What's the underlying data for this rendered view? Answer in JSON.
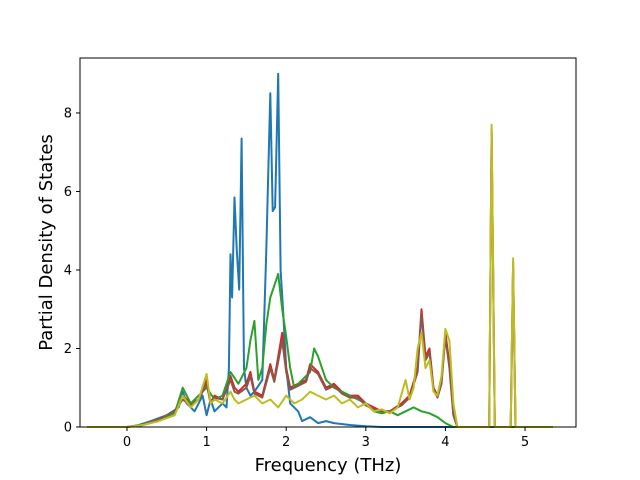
{
  "chart_data": {
    "type": "line",
    "title": "",
    "xlabel": "Frequency (THz)",
    "ylabel": "Partial Density of States",
    "xlim": [
      -0.59,
      5.64
    ],
    "ylim": [
      0,
      9.4
    ],
    "xticks": [
      0,
      1,
      2,
      3,
      4,
      5
    ],
    "yticks": [
      0,
      2,
      4,
      6,
      8
    ],
    "grid": false,
    "legend": "none",
    "series": [
      {
        "color": "#1f77b4",
        "points": [
          [
            -0.5,
            0
          ],
          [
            0,
            0
          ],
          [
            0.15,
            0.05
          ],
          [
            0.3,
            0.15
          ],
          [
            0.5,
            0.3
          ],
          [
            0.65,
            0.5
          ],
          [
            0.7,
            0.9
          ],
          [
            0.75,
            0.6
          ],
          [
            0.85,
            0.4
          ],
          [
            0.95,
            0.8
          ],
          [
            1.0,
            0.3
          ],
          [
            1.05,
            0.7
          ],
          [
            1.1,
            0.4
          ],
          [
            1.2,
            0.6
          ],
          [
            1.25,
            0.5
          ],
          [
            1.28,
            1.5
          ],
          [
            1.3,
            4.4
          ],
          [
            1.32,
            3.3
          ],
          [
            1.35,
            5.85
          ],
          [
            1.38,
            4.5
          ],
          [
            1.41,
            3.5
          ],
          [
            1.44,
            7.35
          ],
          [
            1.47,
            1.5
          ],
          [
            1.5,
            1.0
          ],
          [
            1.55,
            0.8
          ],
          [
            1.6,
            0.9
          ],
          [
            1.7,
            1.2
          ],
          [
            1.75,
            4.5
          ],
          [
            1.8,
            8.5
          ],
          [
            1.83,
            5.5
          ],
          [
            1.86,
            5.6
          ],
          [
            1.9,
            9.0
          ],
          [
            1.93,
            4.0
          ],
          [
            1.96,
            3.0
          ],
          [
            2.0,
            1.5
          ],
          [
            2.05,
            0.6
          ],
          [
            2.1,
            0.5
          ],
          [
            2.15,
            0.4
          ],
          [
            2.2,
            0.15
          ],
          [
            2.3,
            0.25
          ],
          [
            2.4,
            0.1
          ],
          [
            2.5,
            0.15
          ],
          [
            2.6,
            0.1
          ],
          [
            2.8,
            0.05
          ],
          [
            3.0,
            0.02
          ],
          [
            3.2,
            0
          ],
          [
            5.35,
            0
          ]
        ]
      },
      {
        "color": "#d62728",
        "points": [
          [
            -0.5,
            0
          ],
          [
            0,
            0
          ],
          [
            0.2,
            0.05
          ],
          [
            0.4,
            0.2
          ],
          [
            0.6,
            0.4
          ],
          [
            0.7,
            0.8
          ],
          [
            0.8,
            0.6
          ],
          [
            0.9,
            0.7
          ],
          [
            1.0,
            1.2
          ],
          [
            1.05,
            0.6
          ],
          [
            1.1,
            0.8
          ],
          [
            1.2,
            0.7
          ],
          [
            1.3,
            1.3
          ],
          [
            1.35,
            1.0
          ],
          [
            1.4,
            0.9
          ],
          [
            1.5,
            1.1
          ],
          [
            1.55,
            1.4
          ],
          [
            1.6,
            0.9
          ],
          [
            1.7,
            0.8
          ],
          [
            1.8,
            1.6
          ],
          [
            1.85,
            1.2
          ],
          [
            1.95,
            2.4
          ],
          [
            2.0,
            1.5
          ],
          [
            2.05,
            1.0
          ],
          [
            2.15,
            1.1
          ],
          [
            2.25,
            1.2
          ],
          [
            2.3,
            1.6
          ],
          [
            2.4,
            1.4
          ],
          [
            2.5,
            1.0
          ],
          [
            2.6,
            1.1
          ],
          [
            2.7,
            0.9
          ],
          [
            2.8,
            0.8
          ],
          [
            2.9,
            0.8
          ],
          [
            3.0,
            0.6
          ],
          [
            3.1,
            0.5
          ],
          [
            3.2,
            0.4
          ],
          [
            3.3,
            0.4
          ],
          [
            3.45,
            0.6
          ],
          [
            3.55,
            0.8
          ],
          [
            3.65,
            1.5
          ],
          [
            3.7,
            3.0
          ],
          [
            3.75,
            1.8
          ],
          [
            3.8,
            2.0
          ],
          [
            3.85,
            1.0
          ],
          [
            3.9,
            0.8
          ],
          [
            3.95,
            1.2
          ],
          [
            4.0,
            2.4
          ],
          [
            4.05,
            1.6
          ],
          [
            4.1,
            0.3
          ],
          [
            4.15,
            0
          ],
          [
            4.55,
            0
          ],
          [
            4.58,
            7.6
          ],
          [
            4.62,
            0
          ],
          [
            4.82,
            0
          ],
          [
            4.85,
            4.2
          ],
          [
            4.88,
            0
          ],
          [
            5.35,
            0
          ]
        ]
      },
      {
        "color": "#2ca02c",
        "points": [
          [
            -0.5,
            0
          ],
          [
            0,
            0
          ],
          [
            0.2,
            0.05
          ],
          [
            0.4,
            0.2
          ],
          [
            0.6,
            0.35
          ],
          [
            0.7,
            1.0
          ],
          [
            0.8,
            0.6
          ],
          [
            0.9,
            0.8
          ],
          [
            1.0,
            1.0
          ],
          [
            1.1,
            0.7
          ],
          [
            1.2,
            0.8
          ],
          [
            1.3,
            1.4
          ],
          [
            1.4,
            1.1
          ],
          [
            1.5,
            1.5
          ],
          [
            1.55,
            2.2
          ],
          [
            1.6,
            2.7
          ],
          [
            1.65,
            1.2
          ],
          [
            1.7,
            1.5
          ],
          [
            1.75,
            2.6
          ],
          [
            1.8,
            3.3
          ],
          [
            1.85,
            3.6
          ],
          [
            1.9,
            3.9
          ],
          [
            1.95,
            3.0
          ],
          [
            2.0,
            2.3
          ],
          [
            2.05,
            1.5
          ],
          [
            2.1,
            1.0
          ],
          [
            2.2,
            1.2
          ],
          [
            2.3,
            1.4
          ],
          [
            2.35,
            2.0
          ],
          [
            2.4,
            1.8
          ],
          [
            2.5,
            1.2
          ],
          [
            2.6,
            1.0
          ],
          [
            2.7,
            0.9
          ],
          [
            2.8,
            0.8
          ],
          [
            2.9,
            0.7
          ],
          [
            3.0,
            0.6
          ],
          [
            3.1,
            0.4
          ],
          [
            3.2,
            0.35
          ],
          [
            3.3,
            0.4
          ],
          [
            3.4,
            0.3
          ],
          [
            3.5,
            0.4
          ],
          [
            3.6,
            0.5
          ],
          [
            3.7,
            0.4
          ],
          [
            3.8,
            0.35
          ],
          [
            3.9,
            0.25
          ],
          [
            4.0,
            0.1
          ],
          [
            4.1,
            0
          ],
          [
            5.35,
            0
          ]
        ]
      },
      {
        "color": "#8c564b",
        "points": [
          [
            -0.5,
            0
          ],
          [
            0,
            0
          ],
          [
            0.2,
            0.05
          ],
          [
            0.4,
            0.2
          ],
          [
            0.6,
            0.4
          ],
          [
            0.7,
            0.7
          ],
          [
            0.8,
            0.55
          ],
          [
            0.9,
            0.7
          ],
          [
            1.0,
            1.1
          ],
          [
            1.05,
            0.6
          ],
          [
            1.1,
            0.75
          ],
          [
            1.2,
            0.7
          ],
          [
            1.3,
            1.2
          ],
          [
            1.35,
            0.9
          ],
          [
            1.4,
            0.85
          ],
          [
            1.5,
            1.0
          ],
          [
            1.55,
            1.3
          ],
          [
            1.6,
            0.85
          ],
          [
            1.7,
            0.75
          ],
          [
            1.8,
            1.5
          ],
          [
            1.85,
            1.15
          ],
          [
            1.95,
            2.2
          ],
          [
            2.0,
            1.4
          ],
          [
            2.05,
            0.95
          ],
          [
            2.15,
            1.05
          ],
          [
            2.25,
            1.15
          ],
          [
            2.3,
            1.5
          ],
          [
            2.4,
            1.35
          ],
          [
            2.5,
            0.95
          ],
          [
            2.6,
            1.05
          ],
          [
            2.7,
            0.85
          ],
          [
            2.8,
            0.75
          ],
          [
            2.9,
            0.75
          ],
          [
            3.0,
            0.55
          ],
          [
            3.1,
            0.45
          ],
          [
            3.2,
            0.4
          ],
          [
            3.3,
            0.4
          ],
          [
            3.45,
            0.55
          ],
          [
            3.55,
            0.75
          ],
          [
            3.65,
            1.4
          ],
          [
            3.7,
            2.9
          ],
          [
            3.75,
            1.7
          ],
          [
            3.8,
            1.9
          ],
          [
            3.85,
            0.95
          ],
          [
            3.9,
            0.75
          ],
          [
            3.95,
            1.1
          ],
          [
            4.0,
            2.3
          ],
          [
            4.05,
            1.5
          ],
          [
            4.1,
            0.3
          ],
          [
            4.15,
            0
          ],
          [
            4.55,
            0
          ],
          [
            4.58,
            7.5
          ],
          [
            4.62,
            0
          ],
          [
            4.82,
            0
          ],
          [
            4.85,
            4.1
          ],
          [
            4.88,
            0
          ],
          [
            5.35,
            0
          ]
        ]
      },
      {
        "color": "#bcbd22",
        "points": [
          [
            -0.5,
            0
          ],
          [
            0,
            0
          ],
          [
            0.2,
            0.05
          ],
          [
            0.4,
            0.15
          ],
          [
            0.6,
            0.3
          ],
          [
            0.7,
            0.8
          ],
          [
            0.8,
            0.5
          ],
          [
            0.9,
            0.7
          ],
          [
            1.0,
            1.35
          ],
          [
            1.05,
            0.6
          ],
          [
            1.1,
            0.7
          ],
          [
            1.2,
            0.6
          ],
          [
            1.3,
            0.9
          ],
          [
            1.35,
            0.7
          ],
          [
            1.4,
            0.6
          ],
          [
            1.5,
            0.7
          ],
          [
            1.6,
            0.8
          ],
          [
            1.7,
            0.6
          ],
          [
            1.8,
            0.7
          ],
          [
            1.9,
            0.5
          ],
          [
            2.0,
            0.8
          ],
          [
            2.1,
            0.6
          ],
          [
            2.2,
            0.7
          ],
          [
            2.3,
            0.9
          ],
          [
            2.4,
            0.8
          ],
          [
            2.5,
            0.7
          ],
          [
            2.6,
            0.8
          ],
          [
            2.7,
            0.6
          ],
          [
            2.8,
            0.7
          ],
          [
            2.9,
            0.5
          ],
          [
            3.0,
            0.6
          ],
          [
            3.1,
            0.4
          ],
          [
            3.2,
            0.45
          ],
          [
            3.3,
            0.35
          ],
          [
            3.4,
            0.5
          ],
          [
            3.5,
            1.2
          ],
          [
            3.55,
            0.7
          ],
          [
            3.6,
            1.0
          ],
          [
            3.65,
            2.0
          ],
          [
            3.7,
            2.4
          ],
          [
            3.75,
            1.5
          ],
          [
            3.8,
            1.7
          ],
          [
            3.85,
            0.9
          ],
          [
            3.9,
            0.8
          ],
          [
            3.95,
            1.3
          ],
          [
            4.0,
            2.5
          ],
          [
            4.05,
            2.2
          ],
          [
            4.1,
            0.6
          ],
          [
            4.15,
            0
          ],
          [
            4.55,
            0
          ],
          [
            4.58,
            7.7
          ],
          [
            4.62,
            0
          ],
          [
            4.82,
            0
          ],
          [
            4.85,
            4.3
          ],
          [
            4.88,
            0
          ],
          [
            5.35,
            0
          ]
        ]
      }
    ]
  }
}
